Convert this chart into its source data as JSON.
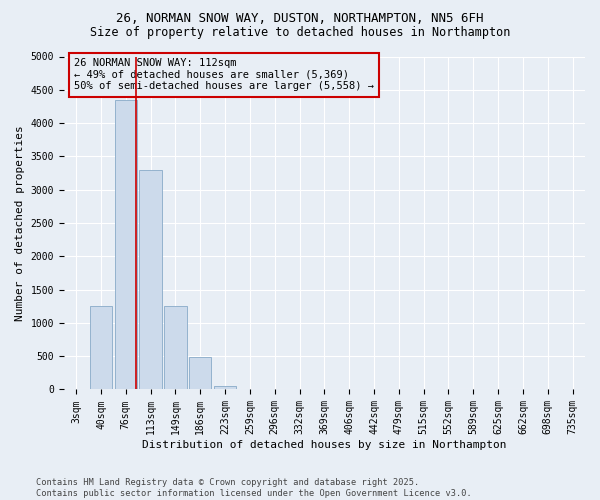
{
  "title_line1": "26, NORMAN SNOW WAY, DUSTON, NORTHAMPTON, NN5 6FH",
  "title_line2": "Size of property relative to detached houses in Northampton",
  "xlabel": "Distribution of detached houses by size in Northampton",
  "ylabel": "Number of detached properties",
  "footnote": "Contains HM Land Registry data © Crown copyright and database right 2025.\nContains public sector information licensed under the Open Government Licence v3.0.",
  "categories": [
    "3sqm",
    "40sqm",
    "76sqm",
    "113sqm",
    "149sqm",
    "186sqm",
    "223sqm",
    "259sqm",
    "296sqm",
    "332sqm",
    "369sqm",
    "406sqm",
    "442sqm",
    "479sqm",
    "515sqm",
    "552sqm",
    "589sqm",
    "625sqm",
    "662sqm",
    "698sqm",
    "735sqm"
  ],
  "values": [
    0,
    1250,
    4350,
    3300,
    1250,
    490,
    50,
    10,
    5,
    3,
    2,
    1,
    1,
    0,
    0,
    0,
    0,
    0,
    0,
    0,
    0
  ],
  "bar_color": "#ccdaeb",
  "bar_edge_color": "#88aac8",
  "vline_x_index": 2.42,
  "vline_color": "#cc0000",
  "annotation_text": "26 NORMAN SNOW WAY: 112sqm\n← 49% of detached houses are smaller (5,369)\n50% of semi-detached houses are larger (5,558) →",
  "annotation_box_color": "#cc0000",
  "ylim": [
    0,
    5000
  ],
  "yticks": [
    0,
    500,
    1000,
    1500,
    2000,
    2500,
    3000,
    3500,
    4000,
    4500,
    5000
  ],
  "background_color": "#e8eef5",
  "grid_color": "#ffffff",
  "title_fontsize": 9,
  "subtitle_fontsize": 8.5,
  "axis_label_fontsize": 8,
  "tick_fontsize": 7,
  "annotation_fontsize": 7.5
}
